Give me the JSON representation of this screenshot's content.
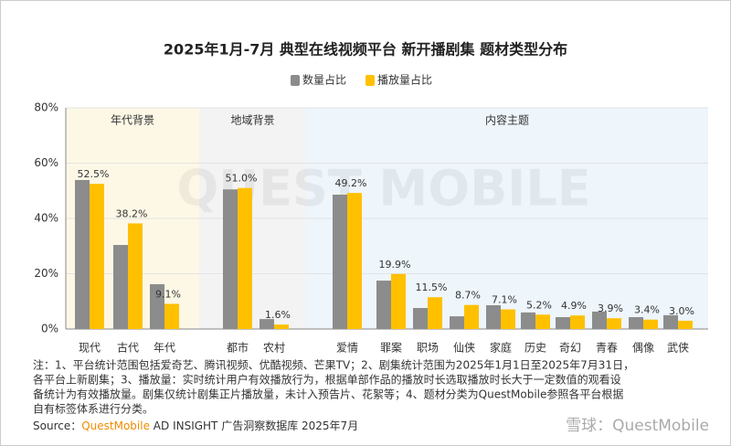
{
  "chart_data": {
    "type": "bar",
    "title": "2025年1月-7月 典型在线视频平台 新开播剧集 题材类型分布",
    "categories": [
      "现代",
      "古代",
      "年代",
      "都市",
      "农村",
      "爱情",
      "罪案",
      "职场",
      "仙侠",
      "家庭",
      "历史",
      "奇幻",
      "青春",
      "偶像",
      "武侠"
    ],
    "groups": [
      {
        "name": "年代背景",
        "count": 3,
        "color": "#fdf8e6"
      },
      {
        "name": "地域背景",
        "count": 2,
        "color": "#f3f3f3"
      },
      {
        "name": "内容主题",
        "count": 10,
        "color": "#eef5fb"
      }
    ],
    "series": [
      {
        "name": "数量占比",
        "color": "#8c8c8c",
        "values": [
          53.9,
          30.4,
          16.2,
          50.5,
          3.6,
          48.6,
          17.5,
          7.6,
          4.6,
          8.6,
          6.0,
          4.3,
          6.3,
          4.3,
          5.0
        ]
      },
      {
        "name": "播放量占比",
        "color": "#ffc000",
        "values": [
          52.5,
          38.2,
          9.1,
          51.0,
          1.6,
          49.2,
          19.9,
          11.5,
          8.7,
          7.1,
          5.2,
          4.9,
          3.9,
          3.4,
          3.0
        ],
        "value_labels": [
          "52.5%",
          "38.2%",
          "9.1%",
          "51.0%",
          "1.6%",
          "49.2%",
          "19.9%",
          "11.5%",
          "8.7%",
          "7.1%",
          "5.2%",
          "4.9%",
          "3.9%",
          "3.4%",
          "3.0%"
        ]
      }
    ],
    "ylim": [
      0,
      80
    ],
    "yticks": [
      {
        "value": 0,
        "label": "0%"
      },
      {
        "value": 20,
        "label": "20%"
      },
      {
        "value": 40,
        "label": "40%"
      },
      {
        "value": 60,
        "label": "60%"
      },
      {
        "value": 80,
        "label": "80%"
      }
    ],
    "grid": true,
    "watermark": "QUEST MOBILE",
    "notes": [
      "注：1、平台统计范围包括爱奇艺、腾讯视频、优酷视频、芒果TV；2、剧集统计范围为2025年1月1日至2025年7月31日，",
      "各平台上新剧集；3、播放量：实时统计用户有效播放行为，根据单部作品的播放时长选取播放时长大于一定数值的观看设",
      "备统计为有效播放量。剧集仅统计剧集正片播放量，未计入预告片、花絮等；4、题材分类为QuestMobile参照各平台根据",
      "自有标签体系进行分类。"
    ],
    "source": {
      "prefix": "Source：",
      "brand": "QuestMobile",
      "rest": " AD INSIGHT 广告洞察数据库 2025年7月"
    },
    "credit": "雪球：QuestMobile"
  }
}
